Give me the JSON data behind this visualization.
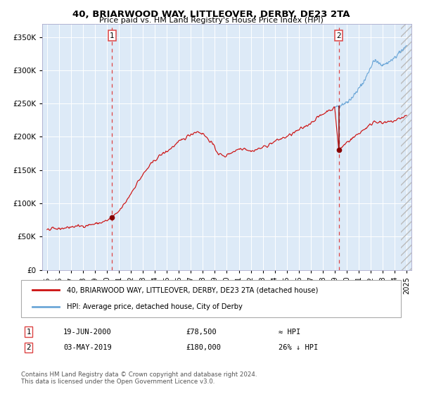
{
  "title": "40, BRIARWOOD WAY, LITTLEOVER, DERBY, DE23 2TA",
  "subtitle": "Price paid vs. HM Land Registry's House Price Index (HPI)",
  "hpi_legend": "HPI: Average price, detached house, City of Derby",
  "price_legend": "40, BRIARWOOD WAY, LITTLEOVER, DERBY, DE23 2TA (detached house)",
  "annotation1": {
    "label": "1",
    "date_str": "19-JUN-2000",
    "price": 78500,
    "note": "≈ HPI"
  },
  "annotation2": {
    "label": "2",
    "date_str": "03-MAY-2019",
    "price": 180000,
    "note": "26% ↓ HPI"
  },
  "footer": "Contains HM Land Registry data © Crown copyright and database right 2024.\nThis data is licensed under the Open Government Licence v3.0.",
  "hpi_color": "#6ea8d8",
  "price_color": "#cc1111",
  "marker_color": "#880000",
  "dashed_color": "#dd4444",
  "bg_color": "#ddeaf7",
  "grid_color": "#ffffff",
  "ylim": [
    0,
    370000
  ],
  "yticks": [
    0,
    50000,
    100000,
    150000,
    200000,
    250000,
    300000,
    350000
  ]
}
